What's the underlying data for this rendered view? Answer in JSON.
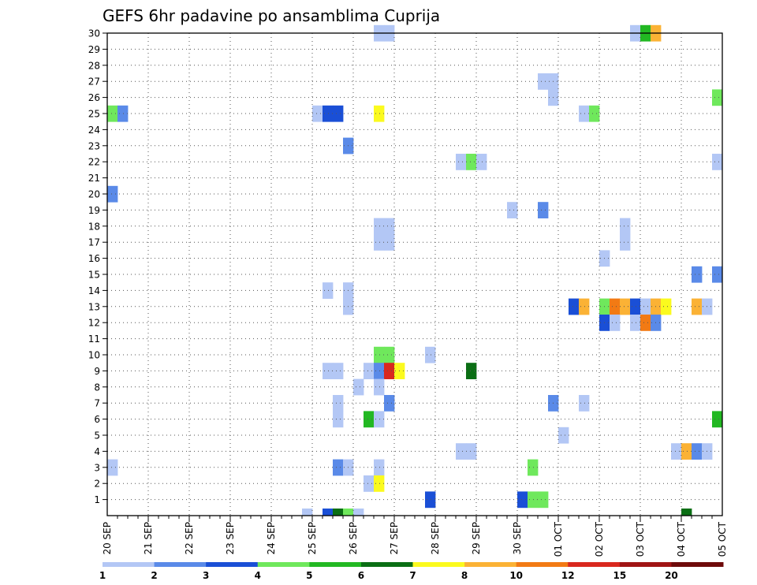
{
  "chart_data": {
    "type": "heatmap",
    "title": "GEFS 6hr padavine po ansamblima Cuprija",
    "xlabel": "",
    "ylabel": "",
    "x_ticks": [
      "20 SEP",
      "21 SEP",
      "22 SEP",
      "23 SEP",
      "24 SEP",
      "25 SEP",
      "26 SEP",
      "27 SEP",
      "28 SEP",
      "29 SEP",
      "30 SEP",
      "01 OCT",
      "02 OCT",
      "03 OCT",
      "04 OCT",
      "05 OCT"
    ],
    "x_range": [
      "20 SEP 00Z",
      "05 OCT 00Z"
    ],
    "x_step_hours": 6,
    "y_ticks": [
      1,
      2,
      3,
      4,
      5,
      6,
      7,
      8,
      9,
      10,
      11,
      12,
      13,
      14,
      15,
      16,
      17,
      18,
      19,
      20,
      21,
      22,
      23,
      24,
      25,
      26,
      27,
      28,
      29,
      30
    ],
    "y_range": [
      0,
      30
    ],
    "grid": true,
    "colorbar": {
      "labels": [
        "1",
        "2",
        "3",
        "4",
        "5",
        "6",
        "7",
        "8",
        "10",
        "12",
        "15",
        "20"
      ],
      "bounds": [
        1,
        2,
        3,
        4,
        5,
        6,
        7,
        8,
        10,
        12,
        15,
        20
      ],
      "colors": [
        "#b3c7f5",
        "#5a8ae8",
        "#1a4fd6",
        "#6fe85c",
        "#22b822",
        "#0a6e14",
        "#fbfa1e",
        "#fbb235",
        "#f27a14",
        "#d9281e",
        "#a01414",
        "#6e0a0a"
      ]
    },
    "cells": [
      {
        "member": 30,
        "t": 26,
        "v": 1.5
      },
      {
        "member": 30,
        "t": 27,
        "v": 1.5
      },
      {
        "member": 30,
        "t": 51,
        "v": 1.5
      },
      {
        "member": 30,
        "t": 52,
        "v": 5.5
      },
      {
        "member": 30,
        "t": 53,
        "v": 9
      },
      {
        "member": 27,
        "t": 42,
        "v": 1.5
      },
      {
        "member": 27,
        "t": 43,
        "v": 1.5
      },
      {
        "member": 26,
        "t": 43,
        "v": 1.5
      },
      {
        "member": 26,
        "t": 59,
        "v": 4.5
      },
      {
        "member": 25,
        "t": 0,
        "v": 4.5
      },
      {
        "member": 25,
        "t": 1,
        "v": 2.5
      },
      {
        "member": 25,
        "t": 20,
        "v": 1.5
      },
      {
        "member": 25,
        "t": 21,
        "v": 3.5
      },
      {
        "member": 25,
        "t": 22,
        "v": 3.5
      },
      {
        "member": 25,
        "t": 26,
        "v": 7.5
      },
      {
        "member": 25,
        "t": 46,
        "v": 1.5
      },
      {
        "member": 25,
        "t": 47,
        "v": 4.5
      },
      {
        "member": 23,
        "t": 23,
        "v": 2.5
      },
      {
        "member": 22,
        "t": 34,
        "v": 1.5
      },
      {
        "member": 22,
        "t": 35,
        "v": 4.5
      },
      {
        "member": 22,
        "t": 36,
        "v": 1.5
      },
      {
        "member": 22,
        "t": 59,
        "v": 1.5
      },
      {
        "member": 20,
        "t": 0,
        "v": 2.5
      },
      {
        "member": 19,
        "t": 39,
        "v": 1.5
      },
      {
        "member": 19,
        "t": 42,
        "v": 2.5
      },
      {
        "member": 18,
        "t": 26,
        "v": 1.5
      },
      {
        "member": 18,
        "t": 27,
        "v": 1.5
      },
      {
        "member": 18,
        "t": 50,
        "v": 1.5
      },
      {
        "member": 17,
        "t": 26,
        "v": 1.5
      },
      {
        "member": 17,
        "t": 27,
        "v": 1.5
      },
      {
        "member": 17,
        "t": 50,
        "v": 1.5
      },
      {
        "member": 16,
        "t": 48,
        "v": 1.5
      },
      {
        "member": 15,
        "t": 57,
        "v": 2.5
      },
      {
        "member": 15,
        "t": 59,
        "v": 2.5
      },
      {
        "member": 14,
        "t": 21,
        "v": 1.5
      },
      {
        "member": 14,
        "t": 23,
        "v": 1.5
      },
      {
        "member": 13,
        "t": 23,
        "v": 1.5
      },
      {
        "member": 13,
        "t": 45,
        "v": 3.5
      },
      {
        "member": 13,
        "t": 46,
        "v": 9
      },
      {
        "member": 13,
        "t": 48,
        "v": 4.5
      },
      {
        "member": 13,
        "t": 49,
        "v": 11
      },
      {
        "member": 13,
        "t": 50,
        "v": 9
      },
      {
        "member": 13,
        "t": 51,
        "v": 3.5
      },
      {
        "member": 13,
        "t": 52,
        "v": 1.5
      },
      {
        "member": 13,
        "t": 53,
        "v": 9
      },
      {
        "member": 13,
        "t": 54,
        "v": 7.5
      },
      {
        "member": 13,
        "t": 57,
        "v": 9
      },
      {
        "member": 13,
        "t": 58,
        "v": 1.5
      },
      {
        "member": 12,
        "t": 48,
        "v": 3.5
      },
      {
        "member": 12,
        "t": 49,
        "v": 1.5
      },
      {
        "member": 12,
        "t": 51,
        "v": 1.5
      },
      {
        "member": 12,
        "t": 52,
        "v": 11
      },
      {
        "member": 12,
        "t": 53,
        "v": 2.5
      },
      {
        "member": 10,
        "t": 26,
        "v": 4.5
      },
      {
        "member": 10,
        "t": 27,
        "v": 4.5
      },
      {
        "member": 10,
        "t": 31,
        "v": 1.5
      },
      {
        "member": 9,
        "t": 21,
        "v": 1.5
      },
      {
        "member": 9,
        "t": 22,
        "v": 1.5
      },
      {
        "member": 9,
        "t": 25,
        "v": 1.5
      },
      {
        "member": 9,
        "t": 26,
        "v": 2.5
      },
      {
        "member": 9,
        "t": 27,
        "v": 13
      },
      {
        "member": 9,
        "t": 28,
        "v": 7.5
      },
      {
        "member": 9,
        "t": 35,
        "v": 6.5
      },
      {
        "member": 8,
        "t": 24,
        "v": 1.5
      },
      {
        "member": 8,
        "t": 26,
        "v": 1.5
      },
      {
        "member": 7,
        "t": 22,
        "v": 1.5
      },
      {
        "member": 7,
        "t": 27,
        "v": 2.5
      },
      {
        "member": 7,
        "t": 43,
        "v": 2.5
      },
      {
        "member": 7,
        "t": 46,
        "v": 1.5
      },
      {
        "member": 6,
        "t": 22,
        "v": 1.5
      },
      {
        "member": 6,
        "t": 25,
        "v": 5.5
      },
      {
        "member": 6,
        "t": 26,
        "v": 1.5
      },
      {
        "member": 6,
        "t": 59,
        "v": 5.5
      },
      {
        "member": 5,
        "t": 44,
        "v": 1.5
      },
      {
        "member": 4,
        "t": 34,
        "v": 1.5
      },
      {
        "member": 4,
        "t": 35,
        "v": 1.5
      },
      {
        "member": 4,
        "t": 55,
        "v": 1.5
      },
      {
        "member": 4,
        "t": 56,
        "v": 9
      },
      {
        "member": 4,
        "t": 57,
        "v": 2.5
      },
      {
        "member": 4,
        "t": 58,
        "v": 1.5
      },
      {
        "member": 3,
        "t": 0,
        "v": 1.5
      },
      {
        "member": 3,
        "t": 22,
        "v": 2.5
      },
      {
        "member": 3,
        "t": 23,
        "v": 1.5
      },
      {
        "member": 3,
        "t": 26,
        "v": 1.5
      },
      {
        "member": 3,
        "t": 41,
        "v": 4.5
      },
      {
        "member": 2,
        "t": 25,
        "v": 1.5
      },
      {
        "member": 2,
        "t": 26,
        "v": 7.5
      },
      {
        "member": 1,
        "t": 31,
        "v": 3.5
      },
      {
        "member": 1,
        "t": 40,
        "v": 3.5
      },
      {
        "member": 1,
        "t": 41,
        "v": 4.5
      },
      {
        "member": 1,
        "t": 42,
        "v": 4.5
      },
      {
        "member": 0,
        "t": 19,
        "v": 1.5
      },
      {
        "member": 0,
        "t": 21,
        "v": 3.5
      },
      {
        "member": 0,
        "t": 22,
        "v": 6.5
      },
      {
        "member": 0,
        "t": 23,
        "v": 4.5
      },
      {
        "member": 0,
        "t": 24,
        "v": 1.5
      },
      {
        "member": 0,
        "t": 56,
        "v": 6.5
      }
    ]
  }
}
